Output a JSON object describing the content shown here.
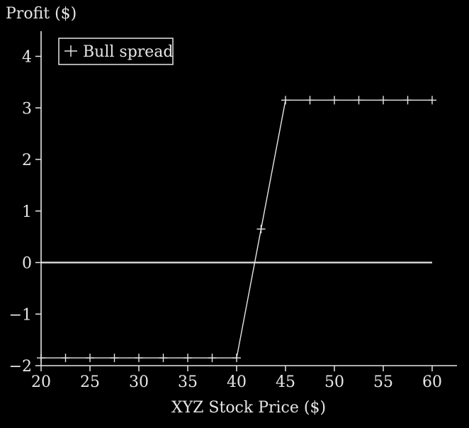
{
  "chart_data": {
    "type": "line",
    "title": "",
    "xlabel": "XYZ Stock Price ($)",
    "ylabel": "Profit ($)",
    "xlim": [
      20,
      62.5
    ],
    "ylim": [
      -2,
      4.5
    ],
    "xticks": [
      20,
      25,
      30,
      35,
      40,
      45,
      50,
      55,
      60
    ],
    "xtick_labels": [
      "20",
      "25",
      "30",
      "35",
      "40",
      "45",
      "50",
      "55",
      "60"
    ],
    "yticks": [
      -2,
      -1,
      0,
      1,
      2,
      3,
      4
    ],
    "ytick_labels": [
      "−2",
      "−1",
      "0",
      "1",
      "2",
      "3",
      "4"
    ],
    "grid": false,
    "legend_position": "top-left",
    "series": [
      {
        "name": "Bull spread",
        "marker": "plus",
        "color": "#e6e6e6",
        "x": [
          20,
          22.5,
          25,
          27.5,
          30,
          32.5,
          35,
          37.5,
          40,
          42.5,
          45,
          47.5,
          50,
          52.5,
          55,
          57.5,
          60
        ],
        "y": [
          -1.85,
          -1.85,
          -1.85,
          -1.85,
          -1.85,
          -1.85,
          -1.85,
          -1.85,
          -1.85,
          0.65,
          3.15,
          3.15,
          3.15,
          3.15,
          3.15,
          3.15,
          3.15
        ]
      }
    ],
    "reference_lines": [
      {
        "y": 0,
        "x_from": 20,
        "x_to": 60,
        "color": "#e6e6e6"
      }
    ]
  }
}
